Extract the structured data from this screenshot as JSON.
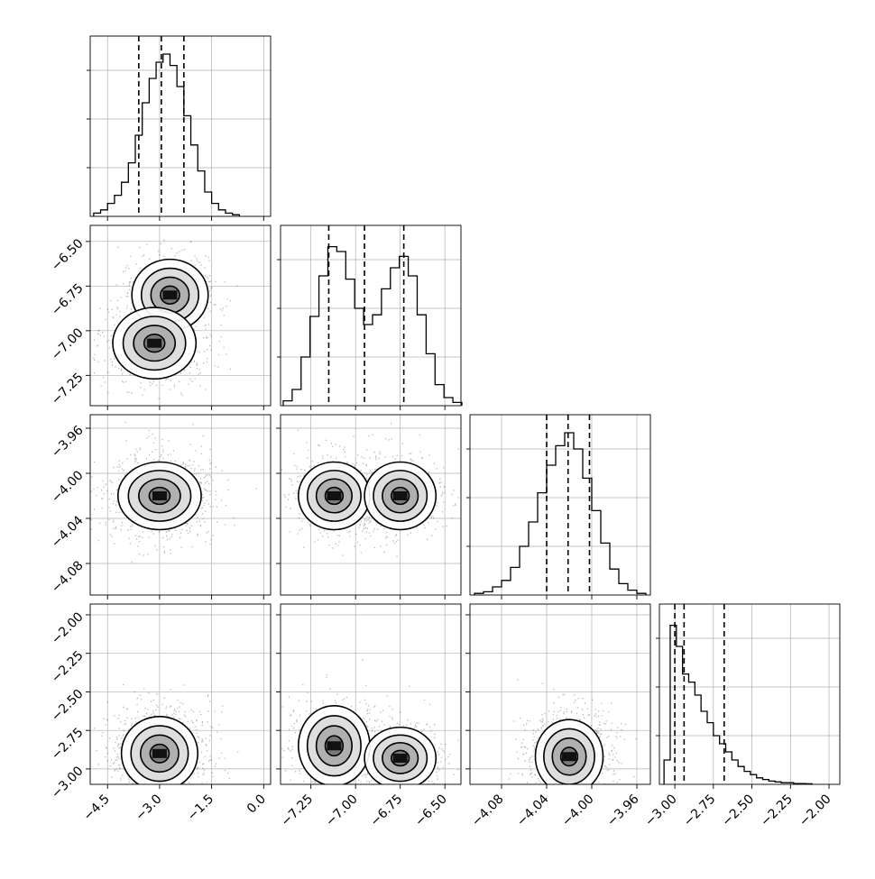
{
  "chart_data": {
    "type": "corner",
    "title": "",
    "parameters": [
      {
        "range": [
          -5.0,
          0.2
        ],
        "ticks": [
          -4.5,
          -3.0,
          -1.5,
          0.0
        ],
        "tick_labels": [
          "−4.5",
          "−3.0",
          "−1.5",
          "0.0"
        ]
      },
      {
        "range": [
          -7.42,
          -6.41
        ],
        "ticks": [
          -7.25,
          -7.0,
          -6.75,
          -6.5
        ],
        "tick_labels": [
          "−7.25",
          "−7.00",
          "−6.75",
          "−6.50"
        ]
      },
      {
        "range": [
          -4.108,
          -3.948
        ],
        "ticks": [
          -4.08,
          -4.04,
          -4.0,
          -3.96
        ],
        "tick_labels": [
          "−4.08",
          "−4.04",
          "−4.00",
          "−3.96"
        ]
      },
      {
        "range": [
          -3.1,
          -1.93
        ],
        "ticks": [
          -3.0,
          -2.75,
          -2.5,
          -2.25,
          -2.0
        ],
        "tick_labels": [
          "−3.00",
          "−2.75",
          "−2.50",
          "−2.25",
          "−2.00"
        ]
      }
    ],
    "histograms": [
      {
        "bins": [
          -4.8,
          -4.6,
          -4.4,
          -4.2,
          -4.0,
          -3.8,
          -3.6,
          -3.4,
          -3.2,
          -3.0,
          -2.8,
          -2.6,
          -2.4,
          -2.2,
          -2.0,
          -1.8,
          -1.6,
          -1.4,
          -1.2,
          -1.0,
          -0.8
        ],
        "counts": [
          0.02,
          0.04,
          0.08,
          0.13,
          0.21,
          0.33,
          0.5,
          0.7,
          0.85,
          0.95,
          1.0,
          0.93,
          0.8,
          0.62,
          0.44,
          0.28,
          0.15,
          0.08,
          0.04,
          0.02,
          0.01
        ],
        "quantiles": [
          -3.6,
          -2.95,
          -2.3
        ]
      },
      {
        "bins": [
          -7.38,
          -7.33,
          -7.28,
          -7.23,
          -7.18,
          -7.13,
          -7.08,
          -7.03,
          -6.98,
          -6.93,
          -6.88,
          -6.83,
          -6.78,
          -6.73,
          -6.68,
          -6.63,
          -6.58,
          -6.53,
          -6.48,
          -6.43
        ],
        "counts": [
          0.03,
          0.1,
          0.3,
          0.55,
          0.8,
          0.98,
          0.95,
          0.78,
          0.6,
          0.5,
          0.56,
          0.72,
          0.85,
          0.92,
          0.8,
          0.56,
          0.32,
          0.13,
          0.05,
          0.02
        ],
        "quantiles": [
          -7.15,
          -6.95,
          -6.73
        ]
      },
      {
        "bins": [
          -4.1,
          -4.092,
          -4.084,
          -4.076,
          -4.068,
          -4.06,
          -4.052,
          -4.044,
          -4.036,
          -4.028,
          -4.02,
          -4.012,
          -4.004,
          -3.996,
          -3.988,
          -3.98,
          -3.972,
          -3.964,
          -3.956
        ],
        "counts": [
          0.01,
          0.02,
          0.05,
          0.09,
          0.17,
          0.3,
          0.45,
          0.63,
          0.8,
          0.92,
          1.0,
          0.9,
          0.72,
          0.52,
          0.32,
          0.16,
          0.07,
          0.03,
          0.01
        ],
        "quantiles": [
          -4.04,
          -4.021,
          -4.002
        ]
      },
      {
        "bins": [
          -3.05,
          -3.01,
          -2.97,
          -2.93,
          -2.89,
          -2.85,
          -2.81,
          -2.77,
          -2.73,
          -2.69,
          -2.65,
          -2.61,
          -2.57,
          -2.53,
          -2.49,
          -2.45,
          -2.41,
          -2.37,
          -2.33,
          -2.29,
          -2.25,
          -2.21,
          -2.17,
          -2.13
        ],
        "counts": [
          0.15,
          0.98,
          0.85,
          0.68,
          0.63,
          0.55,
          0.45,
          0.38,
          0.3,
          0.25,
          0.2,
          0.15,
          0.11,
          0.08,
          0.06,
          0.04,
          0.03,
          0.02,
          0.015,
          0.01,
          0.01,
          0.005,
          0.005,
          0.003
        ],
        "quantiles": [
          -3.0,
          -2.94,
          -2.68
        ]
      }
    ],
    "pairs": [
      {
        "x": 0,
        "y": 1,
        "modes": [
          {
            "mx": -2.7,
            "my": -6.8,
            "sx": 0.55,
            "sy": 0.1,
            "w": 0.5
          },
          {
            "mx": -3.15,
            "my": -7.07,
            "sx": 0.6,
            "sy": 0.1,
            "w": 0.5
          }
        ]
      },
      {
        "x": 0,
        "y": 2,
        "modes": [
          {
            "mx": -3.0,
            "my": -4.02,
            "sx": 0.6,
            "sy": 0.015,
            "w": 1.0
          }
        ]
      },
      {
        "x": 1,
        "y": 2,
        "modes": [
          {
            "mx": -7.12,
            "my": -4.02,
            "sx": 0.1,
            "sy": 0.015,
            "w": 0.5
          },
          {
            "mx": -6.75,
            "my": -4.02,
            "sx": 0.1,
            "sy": 0.015,
            "w": 0.5
          }
        ]
      },
      {
        "x": 0,
        "y": 3,
        "modes": [
          {
            "mx": -3.0,
            "my": -2.9,
            "sx": 0.55,
            "sy": 0.12,
            "w": 1.0
          }
        ]
      },
      {
        "x": 1,
        "y": 3,
        "modes": [
          {
            "mx": -7.12,
            "my": -2.85,
            "sx": 0.1,
            "sy": 0.13,
            "w": 0.5
          },
          {
            "mx": -6.75,
            "my": -2.93,
            "sx": 0.1,
            "sy": 0.1,
            "w": 0.5
          }
        ]
      },
      {
        "x": 2,
        "y": 3,
        "modes": [
          {
            "mx": -4.02,
            "my": -2.92,
            "sx": 0.015,
            "sy": 0.12,
            "w": 1.0
          }
        ]
      }
    ],
    "grid": true
  }
}
